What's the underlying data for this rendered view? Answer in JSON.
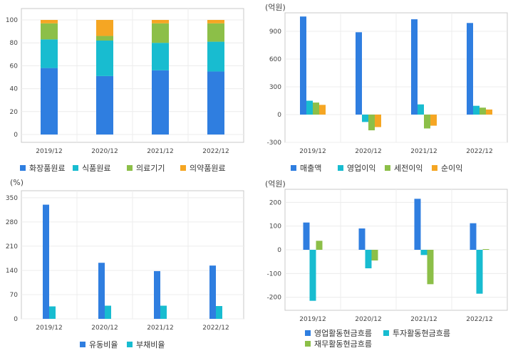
{
  "chart_data": [
    {
      "type": "bar",
      "stacked": true,
      "unit": "",
      "categories": [
        "2019/12",
        "2020/12",
        "2021/12",
        "2022/12"
      ],
      "ylim": [
        0,
        100
      ],
      "yticks": [
        0,
        20,
        40,
        60,
        80,
        100
      ],
      "series": [
        {
          "name": "화장품원료",
          "color": "#2f7ee0",
          "values": [
            58,
            51,
            56,
            55
          ]
        },
        {
          "name": "식품원료",
          "color": "#18bcd0",
          "values": [
            25,
            31,
            24,
            26
          ]
        },
        {
          "name": "의료기기",
          "color": "#8cbf48",
          "values": [
            14,
            4,
            17,
            16
          ]
        },
        {
          "name": "의약품원료",
          "color": "#f5a623",
          "values": [
            3,
            14,
            3,
            3
          ]
        }
      ]
    },
    {
      "type": "bar",
      "unit": "(억원)",
      "categories": [
        "2019/12",
        "2020/12",
        "2021/12",
        "2022/12"
      ],
      "ylim": [
        -300,
        1100
      ],
      "yticks": [
        -300,
        0,
        300,
        600,
        900
      ],
      "series": [
        {
          "name": "매출액",
          "color": "#2f7ee0",
          "values": [
            1060,
            890,
            1030,
            990
          ]
        },
        {
          "name": "영업이익",
          "color": "#18bcd0",
          "values": [
            150,
            -80,
            110,
            95
          ]
        },
        {
          "name": "세전이익",
          "color": "#8cbf48",
          "values": [
            130,
            -170,
            -150,
            75
          ]
        },
        {
          "name": "순이익",
          "color": "#f5a623",
          "values": [
            105,
            -135,
            -120,
            55
          ]
        }
      ]
    },
    {
      "type": "bar",
      "unit": "(%)",
      "categories": [
        "2019/12",
        "2020/12",
        "2021/12",
        "2022/12"
      ],
      "ylim": [
        0,
        360
      ],
      "yticks": [
        0,
        70,
        140,
        210,
        280,
        350
      ],
      "series": [
        {
          "name": "유동비율",
          "color": "#2f7ee0",
          "values": [
            330,
            162,
            138,
            154
          ]
        },
        {
          "name": "부채비율",
          "color": "#18bcd0",
          "values": [
            36,
            38,
            38,
            37
          ]
        }
      ]
    },
    {
      "type": "bar",
      "unit": "(억원)",
      "categories": [
        "2019/12",
        "2020/12",
        "2021/12",
        "2022/12"
      ],
      "ylim": [
        -240,
        240
      ],
      "yticks": [
        -200,
        -100,
        0,
        100,
        200
      ],
      "series": [
        {
          "name": "영업활동현금흐름",
          "color": "#2f7ee0",
          "values": [
            115,
            90,
            215,
            112
          ]
        },
        {
          "name": "투자활동현금흐름",
          "color": "#18bcd0",
          "values": [
            -215,
            -78,
            -22,
            -185
          ]
        },
        {
          "name": "재무활동현금흐름",
          "color": "#8cbf48",
          "values": [
            38,
            -45,
            -145,
            3
          ]
        }
      ]
    }
  ]
}
